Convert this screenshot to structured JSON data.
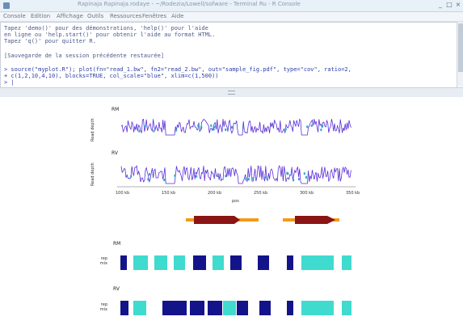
{
  "window": {
    "title": "Rapinaja Rapinaja.rodaye - ~/Rodezia/Lowell/sofware - Terminal Ru - R Console",
    "controls": [
      "_",
      "□",
      "×"
    ]
  },
  "menubar": {
    "items": [
      "Console",
      "Edition",
      "Affichage",
      "Outils",
      "Ressources",
      "Fenêtres",
      "Aide"
    ]
  },
  "console": {
    "lines": [
      "Tapez 'demo()' pour des démonstrations, 'help()' pour l'aide",
      "en ligne ou 'help.start()' pour obtenir l'aide au format HTML.",
      "Tapez 'q()' pour quitter R.",
      "",
      "[Sauvegarde de la session précédente restaurée]",
      "",
      "> source(\"myplot.R\"); plot(fn=\"read_1.bw\", fn2=\"read_2.bw\", out=\"sample_fig.pdf\", type=\"cov\", ratio=2,",
      "+ c(1,2,10,4,10), blocks=TRUE, col_scale=\"blue\", xlim=c(1,500))",
      "> |"
    ]
  },
  "figure": {
    "panels": [
      {
        "label": "RM",
        "ylabel": "Read depth"
      },
      {
        "label": "RV",
        "ylabel": "Read depth"
      }
    ],
    "xticks": [
      "100 kb",
      "150 kb",
      "200 kb",
      "250 kb",
      "300 kb",
      "350 kb"
    ],
    "xlabel": "pos",
    "block_panels": [
      {
        "label": "RM",
        "side_labels": [
          "rep",
          "mix"
        ]
      },
      {
        "label": "RV",
        "side_labels": [
          "rep",
          "mix"
        ]
      }
    ]
  },
  "colors": {
    "dark_block": "#14148a",
    "light_block": "#3fdbcf",
    "gene_arrow": "#f59a18",
    "gene_body": "#8b1414",
    "trace_main": "#5a2fd8",
    "trace_alt": "#2aa8c8"
  }
}
